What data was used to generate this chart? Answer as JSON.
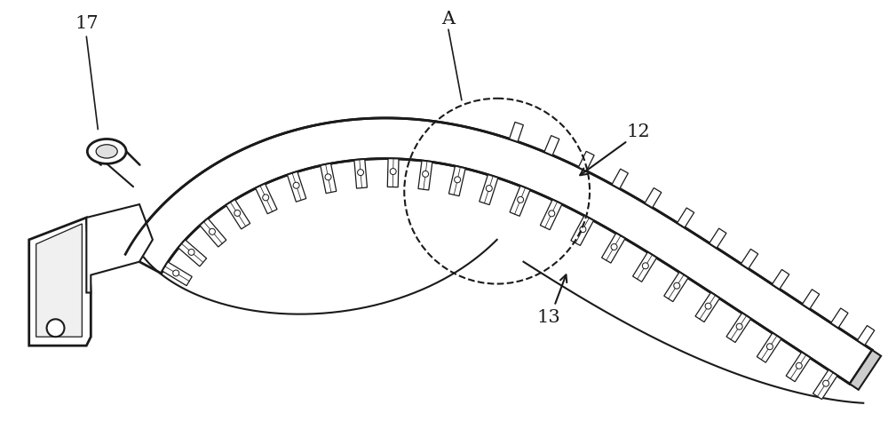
{
  "bg_color": "#ffffff",
  "line_color": "#1a1a1a",
  "lw": 1.5,
  "tlw": 0.9,
  "figsize": [
    10.0,
    4.83
  ],
  "dpi": 100,
  "label_fontsize": 15
}
